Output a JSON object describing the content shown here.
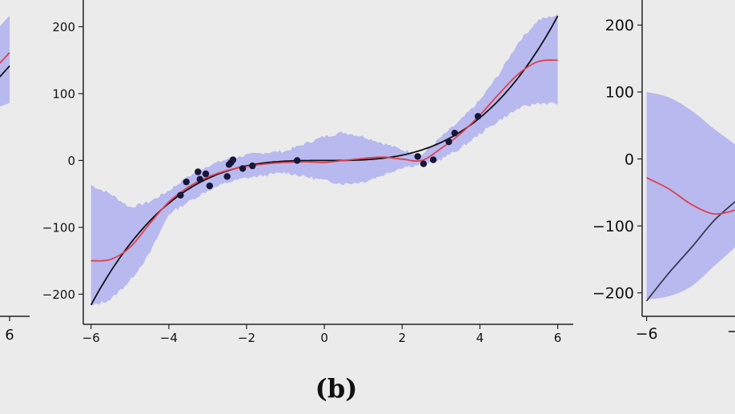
{
  "caption": "(b)",
  "colors": {
    "background": "#ebebeb",
    "band": "#b8b9ef",
    "mean": "#e0404f",
    "truth": "#111111",
    "truth_right": "#3b3b4f",
    "points": "#16163a",
    "axis": "#222222"
  },
  "chart_data": [
    {
      "panel": "left (partially visible)",
      "type": "line",
      "x_ticks": [
        "6"
      ],
      "y_ticks": [],
      "series": [
        {
          "role": "truth",
          "x": [
            5.5,
            6
          ],
          "y": [
            110,
            140
          ]
        },
        {
          "role": "mean",
          "x": [
            5.5,
            6
          ],
          "y": [
            130,
            160
          ]
        }
      ],
      "band": {
        "x": [
          5.5,
          6
        ],
        "lower": [
          75,
          85
        ],
        "upper": [
          185,
          215
        ]
      }
    },
    {
      "panel": "center (b)",
      "type": "line",
      "xlim": [
        -6.2,
        6.4
      ],
      "ylim": [
        -245,
        240
      ],
      "x_ticks": [
        "−6",
        "−4",
        "−2",
        "0",
        "2",
        "4",
        "6"
      ],
      "y_ticks": [
        "200",
        "100",
        "0",
        "−100",
        "−200"
      ],
      "y_tick_values": [
        200,
        100,
        0,
        -100,
        -200
      ],
      "x_tick_values": [
        -6,
        -4,
        -2,
        0,
        2,
        4,
        6
      ],
      "series": [
        {
          "role": "truth",
          "x": [
            -6,
            -5,
            -4,
            -3,
            -2,
            -1,
            0,
            1,
            2,
            3,
            4,
            5,
            6
          ],
          "y": [
            -216,
            -125,
            -64,
            -27,
            -8,
            -1,
            0,
            1,
            8,
            27,
            64,
            125,
            216
          ]
        },
        {
          "role": "mean",
          "x": [
            -6,
            -5.5,
            -5,
            -4.5,
            -4,
            -3.5,
            -3,
            -2.5,
            -2,
            -1.5,
            -1,
            -0.5,
            0,
            0.5,
            1,
            1.5,
            2,
            2.5,
            3,
            3.5,
            4,
            4.5,
            5,
            5.5,
            6
          ],
          "y": [
            -150,
            -148,
            -130,
            -95,
            -62,
            -40,
            -25,
            -15,
            -9,
            -5,
            -3,
            -2,
            -3,
            0,
            3,
            5,
            2,
            0,
            18,
            40,
            68,
            100,
            130,
            148,
            150
          ]
        },
        {
          "role": "observations",
          "x": [
            -3.7,
            -3.55,
            -3.25,
            -3.2,
            -3.05,
            -2.95,
            -2.5,
            -2.45,
            -2.4,
            -2.35,
            -2.1,
            -1.85,
            -0.7,
            2.4,
            2.55,
            2.8,
            3.2,
            3.35,
            3.95
          ],
          "y": [
            -52,
            -32,
            -17,
            -28,
            -20,
            -38,
            -24,
            -6,
            -3,
            1,
            -12,
            -8,
            0,
            6,
            -5,
            1,
            28,
            41,
            66
          ]
        }
      ],
      "band": {
        "x": [
          -6,
          -5.5,
          -5,
          -4.5,
          -4,
          -3.5,
          -3,
          -2.5,
          -2,
          -1.5,
          -1,
          -0.5,
          0,
          0.5,
          1,
          1.5,
          2,
          2.5,
          3,
          3.5,
          4,
          4.5,
          5,
          5.5,
          6
        ],
        "lower": [
          -218,
          -208,
          -180,
          -140,
          -80,
          -62,
          -45,
          -33,
          -26,
          -22,
          -18,
          -24,
          -30,
          -35,
          -32,
          -22,
          -10,
          -6,
          2,
          18,
          40,
          60,
          78,
          86,
          85
        ],
        "upper": [
          -37,
          -50,
          -70,
          -62,
          -45,
          -24,
          -8,
          2,
          8,
          12,
          14,
          25,
          36,
          42,
          36,
          26,
          16,
          8,
          35,
          60,
          90,
          130,
          178,
          210,
          218
        ]
      }
    },
    {
      "panel": "right (partially visible)",
      "type": "line",
      "xlim": [
        -6.1,
        -4.0
      ],
      "ylim": [
        -235,
        235
      ],
      "x_ticks": [
        "−6"
      ],
      "y_ticks": [
        "200",
        "100",
        "0",
        "−100",
        "−200"
      ],
      "y_tick_values": [
        200,
        100,
        0,
        -100,
        -200
      ],
      "x_tick_values": [
        -6
      ],
      "series": [
        {
          "role": "truth",
          "x": [
            -6,
            -5.5,
            -5,
            -4.5,
            -4.0
          ],
          "y": [
            -212,
            -170,
            -132,
            -92,
            -62
          ]
        },
        {
          "role": "mean",
          "x": [
            -6,
            -5.5,
            -5,
            -4.5,
            -4.0
          ],
          "y": [
            -28,
            -45,
            -68,
            -82,
            -76
          ]
        }
      ],
      "band": {
        "x": [
          -6,
          -5.5,
          -5,
          -4.5,
          -4.0
        ],
        "lower": [
          -210,
          -205,
          -190,
          -160,
          -130
        ],
        "upper": [
          100,
          92,
          72,
          45,
          20
        ]
      }
    }
  ]
}
